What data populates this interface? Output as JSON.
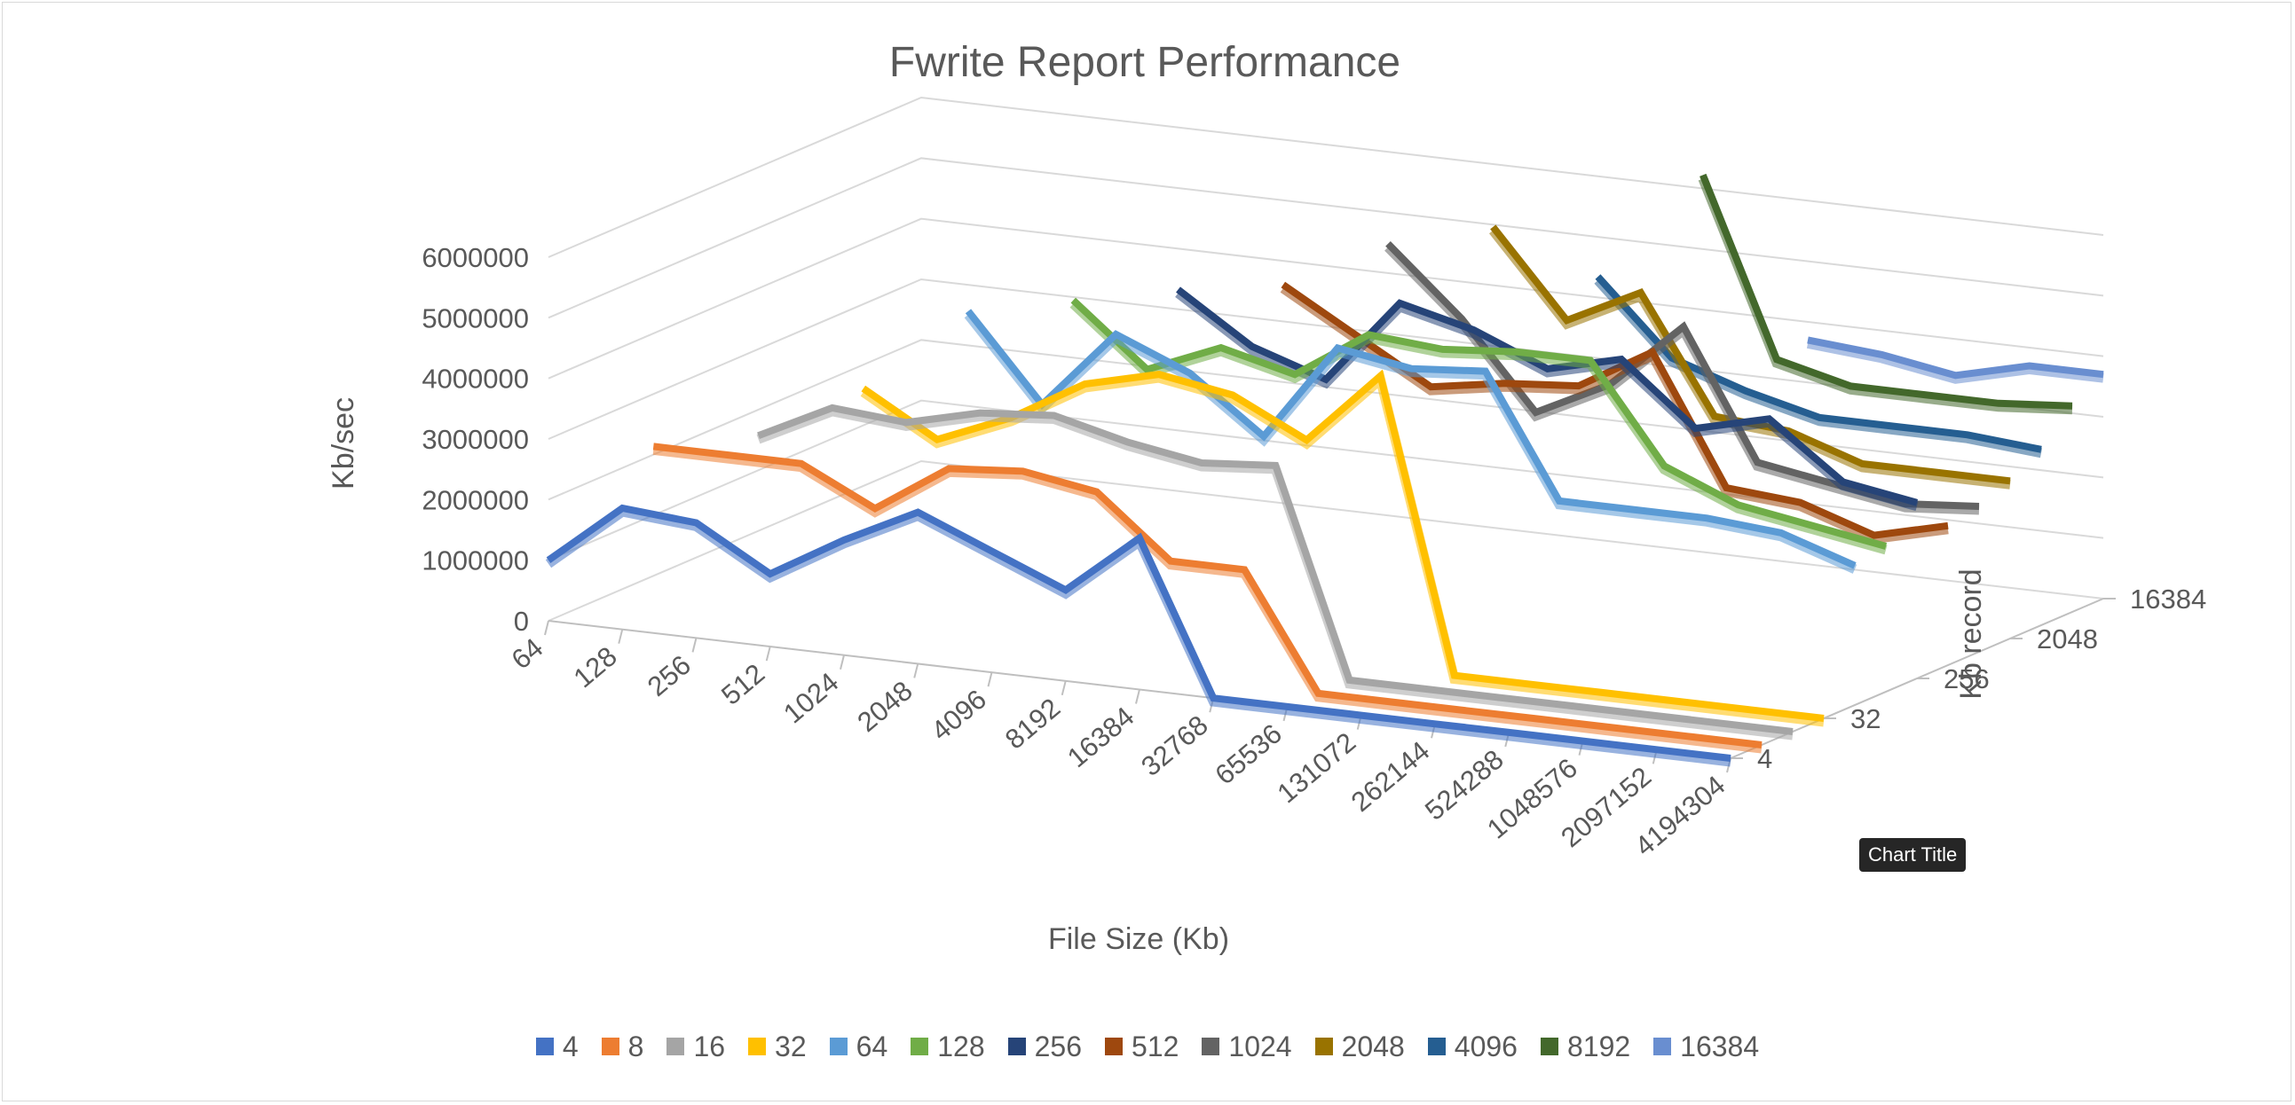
{
  "chart_data": {
    "type": "line",
    "style": "3d-line",
    "title": "Fwrite Report Performance",
    "xlabel": "File Size (Kb)",
    "ylabel": "Kb/sec",
    "zlabel": "Kb record",
    "ylim": [
      0,
      6000000
    ],
    "y_ticks": [
      "0",
      "1000000",
      "2000000",
      "3000000",
      "4000000",
      "5000000",
      "6000000"
    ],
    "x": [
      "64",
      "128",
      "256",
      "512",
      "1024",
      "2048",
      "4096",
      "8192",
      "16384",
      "32768",
      "65536",
      "131072",
      "262144",
      "524288",
      "1048576",
      "2097152",
      "4194304"
    ],
    "z_ticks": [
      "4",
      "32",
      "256",
      "2048",
      "16384"
    ],
    "grid": true,
    "legend_position": "bottom",
    "tooltip": "Chart Title",
    "series": [
      {
        "name": "4",
        "color": "#4472c4",
        "values": [
          1000000,
          2000000,
          1900000,
          1200000,
          1900000,
          2500000,
          2000000,
          1500000,
          2500000,
          0,
          0,
          0,
          0,
          0,
          0,
          0,
          0
        ]
      },
      {
        "name": "8",
        "color": "#ed7d31",
        "values": [
          null,
          2800000,
          2800000,
          2800000,
          2200000,
          3000000,
          3100000,
          2900000,
          1900000,
          1900000,
          0,
          0,
          0,
          0,
          0,
          0,
          0
        ]
      },
      {
        "name": "16",
        "color": "#a5a5a5",
        "values": [
          null,
          null,
          2900000,
          3500000,
          3400000,
          3700000,
          3800000,
          3500000,
          3300000,
          3400000,
          0,
          0,
          0,
          0,
          0,
          0,
          0
        ]
      },
      {
        "name": "32",
        "color": "#ffc000",
        "values": [
          null,
          null,
          null,
          3600000,
          2900000,
          3400000,
          4100000,
          4400000,
          4200000,
          3600000,
          4800000,
          0,
          0,
          0,
          0,
          0,
          0
        ]
      },
      {
        "name": "64",
        "color": "#5b9bd5",
        "values": [
          null,
          null,
          null,
          null,
          4800000,
          3400000,
          4700000,
          4200000,
          3300000,
          4900000,
          4700000,
          4800000,
          2800000,
          2800000,
          2800000,
          2700000,
          2300000
        ]
      },
      {
        "name": "128",
        "color": "#70ad47",
        "values": [
          null,
          null,
          null,
          null,
          null,
          4900000,
          3900000,
          4400000,
          4100000,
          4900000,
          4800000,
          4900000,
          4900000,
          3300000,
          2800000,
          2600000,
          2400000
        ]
      },
      {
        "name": "256",
        "color": "#264478",
        "values": [
          null,
          null,
          null,
          null,
          null,
          null,
          5000000,
          4200000,
          3800000,
          5200000,
          4900000,
          4400000,
          4700000,
          3700000,
          4000000,
          3100000,
          2900000
        ]
      },
      {
        "name": "512",
        "color": "#9e480e",
        "values": [
          null,
          null,
          null,
          null,
          null,
          null,
          null,
          5000000,
          4300000,
          3600000,
          3800000,
          3900000,
          4600000,
          2500000,
          2400000,
          2000000,
          2300000
        ]
      },
      {
        "name": "1024",
        "color": "#636363",
        "values": [
          null,
          null,
          null,
          null,
          null,
          null,
          null,
          null,
          5600000,
          4500000,
          3100000,
          3700000,
          4800000,
          2700000,
          2500000,
          2300000,
          2400000
        ]
      },
      {
        "name": "2048",
        "color": "#997300",
        "values": [
          null,
          null,
          null,
          null,
          null,
          null,
          null,
          null,
          null,
          5800000,
          4400000,
          5000000,
          3100000,
          3000000,
          2600000,
          2600000,
          2600000
        ]
      },
      {
        "name": "4096",
        "color": "#255e91",
        "values": [
          null,
          null,
          null,
          null,
          null,
          null,
          null,
          null,
          null,
          null,
          4900000,
          3700000,
          3300000,
          3000000,
          3000000,
          3000000,
          2900000
        ]
      },
      {
        "name": "8192",
        "color": "#43682b",
        "values": [
          null,
          null,
          null,
          null,
          null,
          null,
          null,
          null,
          null,
          null,
          null,
          6500000,
          3600000,
          3300000,
          3300000,
          3300000,
          3400000
        ]
      },
      {
        "name": "16384",
        "color": "#698ed0",
        "values": [
          null,
          null,
          null,
          null,
          null,
          null,
          null,
          null,
          null,
          null,
          null,
          null,
          3700000,
          3600000,
          3400000,
          3700000,
          3700000
        ]
      }
    ]
  }
}
